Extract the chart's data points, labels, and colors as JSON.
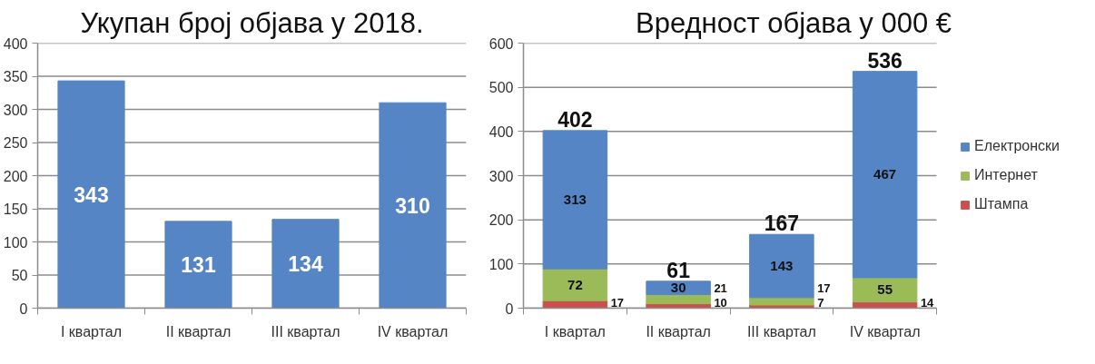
{
  "chart_data": [
    {
      "type": "bar",
      "title": "Укупан број објава у 2018.",
      "categories": [
        "I квартал",
        "II квартал",
        "III квартал",
        "IV квартал"
      ],
      "values": [
        343,
        131,
        134,
        310
      ],
      "color": "#5585c5",
      "ylim": [
        0,
        400
      ],
      "yticks": [
        0,
        50,
        100,
        150,
        200,
        250,
        300,
        350,
        400
      ],
      "grid": "y",
      "data_labels": true
    },
    {
      "type": "bar",
      "title": "Вредност објава у 000 €",
      "categories": [
        "I квартал",
        "II квартал",
        "III квартал",
        "IV квартал"
      ],
      "stacked": true,
      "series": [
        {
          "name": "Штампа",
          "color": "#c9504d",
          "values": [
            17,
            10,
            7,
            14
          ]
        },
        {
          "name": "Интернет",
          "color": "#9bbb59",
          "values": [
            72,
            21,
            17,
            55
          ]
        },
        {
          "name": "Електронски",
          "color": "#5585c5",
          "values": [
            313,
            30,
            143,
            467
          ]
        }
      ],
      "ylim": [
        0,
        600
      ],
      "yticks": [
        0,
        100,
        200,
        300,
        400,
        500,
        600
      ],
      "grid": "y",
      "data_labels": true,
      "totals": [
        "402",
        "61",
        "167",
        "536"
      ],
      "legend": "right"
    }
  ]
}
